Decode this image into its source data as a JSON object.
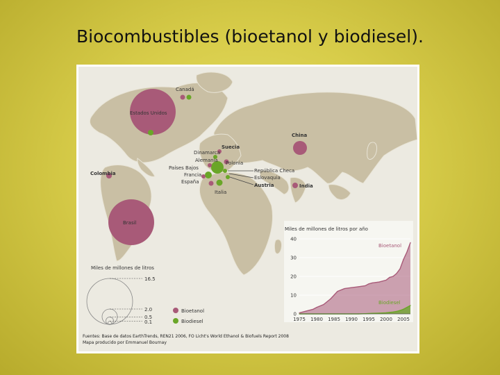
{
  "slide": {
    "title": "Biocombustibles (bioetanol y biodiesel)."
  },
  "map": {
    "countries": [
      {
        "name": "Canadá",
        "fuel": "bioetanol"
      },
      {
        "name": "Estados Unidos",
        "fuel": "bioetanol"
      },
      {
        "name": "China",
        "fuel": "bioetanol"
      },
      {
        "name": "Suecia",
        "fuel": "bioetanol"
      },
      {
        "name": "Dinamarca",
        "fuel": "biodiesel"
      },
      {
        "name": "Alemania",
        "fuel": "biodiesel"
      },
      {
        "name": "Polonia",
        "fuel": "bioetanol"
      },
      {
        "name": "Países Bajos",
        "fuel": "biodiesel"
      },
      {
        "name": "Francia",
        "fuel": "biodiesel"
      },
      {
        "name": "España",
        "fuel": "bioetanol"
      },
      {
        "name": "Italia",
        "fuel": "biodiesel"
      },
      {
        "name": "República Checa",
        "fuel": "biodiesel"
      },
      {
        "name": "Eslovaquia",
        "fuel": "biodiesel"
      },
      {
        "name": "Austria",
        "fuel": "biodiesel"
      },
      {
        "name": "Colombia",
        "fuel": "bioetanol"
      },
      {
        "name": "India",
        "fuel": "bioetanol"
      },
      {
        "name": "Brasil",
        "fuel": "bioetanol"
      }
    ],
    "legend": {
      "title": "Miles de  millones de litros",
      "sizes": [
        "16.5",
        "2.0",
        "0.5",
        "0.1"
      ],
      "bioetanol_label": "Bioetanol",
      "biodiesel_label": "Biodiesel",
      "bioetanol_color": "#a85a78",
      "biodiesel_color": "#6aa628"
    },
    "source_line1": "Fuentes: Base de datos EarthTrends, REN21 2006, FO Licht's World Ethanol & Biofuels Report 2008",
    "source_line2": "Mapa producido por Emmanuel Bournay"
  },
  "chart_data": {
    "type": "area",
    "title": "Miles de millones de litros por año",
    "x": [
      1975,
      1977,
      1979,
      1980,
      1982,
      1984,
      1985,
      1986,
      1988,
      1990,
      1992,
      1994,
      1995,
      1996,
      1998,
      2000,
      2001,
      2002,
      2003,
      2004,
      2005,
      2006,
      2007
    ],
    "x_tick_labels": [
      "1975",
      "1980",
      "1985",
      "1990",
      "1995",
      "2000",
      "2005"
    ],
    "y_tick_labels": [
      "0",
      "10",
      "20",
      "30",
      "40"
    ],
    "ylim": [
      0,
      40
    ],
    "series": [
      {
        "name": "Bioetanol",
        "color": "#a85a78",
        "values": [
          0.5,
          1.5,
          2.5,
          3.5,
          5,
          8,
          10,
          12,
          13.5,
          14,
          14.5,
          15,
          16,
          16.5,
          17,
          18,
          19.5,
          20,
          21.5,
          24,
          29,
          33,
          38
        ]
      },
      {
        "name": "Biodiesel",
        "color": "#6aa628",
        "values": [
          0,
          0,
          0,
          0,
          0,
          0,
          0,
          0,
          0,
          0,
          0,
          0.1,
          0.2,
          0.3,
          0.4,
          0.6,
          0.8,
          1.0,
          1.3,
          1.8,
          2.5,
          3.5,
          4.5
        ]
      }
    ]
  }
}
